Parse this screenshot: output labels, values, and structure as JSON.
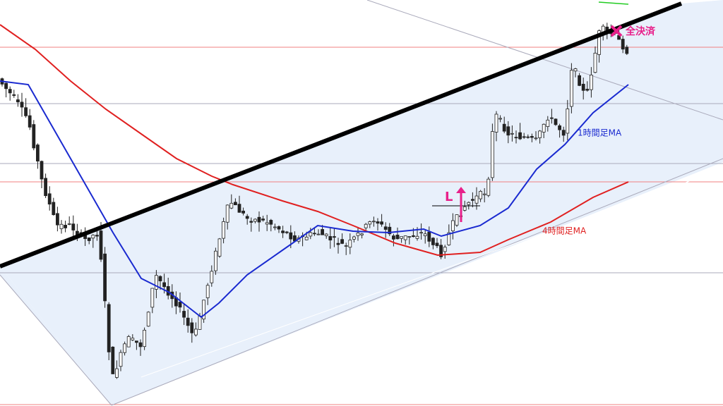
{
  "annotations": {
    "close_all": "全決済",
    "long_entry": "L",
    "ma_1h": "1時間足MA",
    "ma_4h": "4時間足MA"
  }
}
